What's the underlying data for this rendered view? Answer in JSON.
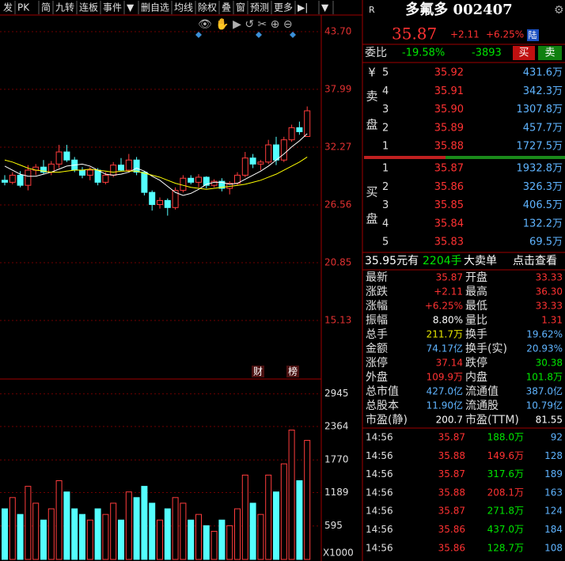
{
  "toolbar": [
    "发",
    "PK",
    "简",
    "九转",
    "连板",
    "事件",
    "▼",
    "删自选",
    "均线",
    "除权",
    "叠",
    "窗",
    "预测",
    "更多",
    "▶|",
    "▼"
  ],
  "chart_data": {
    "type": "candlestick",
    "candles": [
      {
        "open": 29.0,
        "high": 29.5,
        "low": 28.5,
        "close": 28.8
      },
      {
        "open": 28.8,
        "high": 29.8,
        "low": 28.6,
        "close": 29.5
      },
      {
        "open": 29.5,
        "high": 29.9,
        "low": 28.3,
        "close": 28.5
      },
      {
        "open": 28.5,
        "high": 30.5,
        "low": 28.0,
        "close": 30.0
      },
      {
        "open": 30.0,
        "high": 30.6,
        "low": 29.5,
        "close": 30.3
      },
      {
        "open": 30.3,
        "high": 31.0,
        "low": 29.6,
        "close": 29.8
      },
      {
        "open": 29.8,
        "high": 30.9,
        "low": 29.5,
        "close": 30.6
      },
      {
        "open": 30.6,
        "high": 32.5,
        "low": 30.2,
        "close": 31.8
      },
      {
        "open": 31.8,
        "high": 32.5,
        "low": 30.8,
        "close": 31.0
      },
      {
        "open": 31.0,
        "high": 31.3,
        "low": 29.8,
        "close": 30.0
      },
      {
        "open": 30.0,
        "high": 30.3,
        "low": 29.2,
        "close": 29.5
      },
      {
        "open": 29.5,
        "high": 30.3,
        "low": 29.0,
        "close": 30.0
      },
      {
        "open": 30.0,
        "high": 30.2,
        "low": 28.5,
        "close": 28.8
      },
      {
        "open": 28.8,
        "high": 29.8,
        "low": 28.6,
        "close": 29.5
      },
      {
        "open": 29.5,
        "high": 30.8,
        "low": 29.3,
        "close": 30.5
      },
      {
        "open": 30.5,
        "high": 31.2,
        "low": 29.9,
        "close": 30.0
      },
      {
        "open": 30.0,
        "high": 31.6,
        "low": 29.8,
        "close": 31.0
      },
      {
        "open": 31.0,
        "high": 31.3,
        "low": 29.5,
        "close": 29.8
      },
      {
        "open": 29.8,
        "high": 29.9,
        "low": 27.5,
        "close": 27.8
      },
      {
        "open": 27.8,
        "high": 28.0,
        "low": 26.0,
        "close": 26.6
      },
      {
        "open": 26.6,
        "high": 27.3,
        "low": 26.2,
        "close": 27.0
      },
      {
        "open": 27.0,
        "high": 27.2,
        "low": 25.5,
        "close": 26.3
      },
      {
        "open": 26.3,
        "high": 28.3,
        "low": 26.1,
        "close": 28.0
      },
      {
        "open": 28.0,
        "high": 29.5,
        "low": 27.8,
        "close": 29.2
      },
      {
        "open": 29.2,
        "high": 29.5,
        "low": 28.6,
        "close": 28.8
      },
      {
        "open": 28.8,
        "high": 29.6,
        "low": 28.3,
        "close": 29.3
      },
      {
        "open": 29.3,
        "high": 29.4,
        "low": 28.2,
        "close": 28.5
      },
      {
        "open": 28.5,
        "high": 29.1,
        "low": 28.3,
        "close": 28.9
      },
      {
        "open": 28.9,
        "high": 29.2,
        "low": 27.9,
        "close": 28.2
      },
      {
        "open": 28.2,
        "high": 28.9,
        "low": 27.6,
        "close": 28.7
      },
      {
        "open": 28.7,
        "high": 29.8,
        "low": 28.5,
        "close": 29.5
      },
      {
        "open": 29.5,
        "high": 31.8,
        "low": 29.3,
        "close": 31.2
      },
      {
        "open": 31.2,
        "high": 31.6,
        "low": 30.2,
        "close": 30.6
      },
      {
        "open": 30.6,
        "high": 31.0,
        "low": 30.0,
        "close": 30.8
      },
      {
        "open": 30.8,
        "high": 33.0,
        "low": 30.6,
        "close": 32.5
      },
      {
        "open": 32.5,
        "high": 33.3,
        "low": 30.5,
        "close": 31.0
      },
      {
        "open": 31.0,
        "high": 33.3,
        "low": 30.8,
        "close": 33.0
      },
      {
        "open": 33.0,
        "high": 34.5,
        "low": 32.8,
        "close": 34.2
      },
      {
        "open": 34.2,
        "high": 34.8,
        "low": 33.5,
        "close": 33.8
      },
      {
        "open": 33.33,
        "high": 36.3,
        "low": 33.33,
        "close": 35.87
      }
    ],
    "series": [
      {
        "color": "#ffffff",
        "values": [
          30.4,
          30.0,
          29.6,
          29.4,
          29.4,
          29.6,
          29.8,
          30.1,
          30.4,
          30.5,
          30.6,
          30.4,
          30.0,
          29.6,
          29.5,
          29.6,
          29.8,
          30.2,
          29.9,
          29.4,
          29.0,
          28.4,
          27.8,
          27.5,
          27.7,
          28.1,
          28.6,
          28.8,
          28.8,
          28.6,
          28.7,
          29.1,
          29.5,
          29.9,
          30.4,
          31.0,
          31.6,
          32.3,
          32.9,
          33.6
        ]
      },
      {
        "color": "#ffff00",
        "values": [
          31.0,
          30.8,
          30.5,
          30.2,
          30.0,
          29.9,
          29.8,
          29.8,
          29.9,
          30.0,
          30.0,
          30.1,
          30.0,
          29.9,
          29.8,
          29.9,
          29.9,
          29.9,
          29.7,
          29.5,
          29.3,
          29.0,
          28.7,
          28.5,
          28.3,
          28.2,
          28.1,
          28.2,
          28.3,
          28.4,
          28.5,
          28.6,
          28.8,
          29.0,
          29.3,
          29.6,
          30.0,
          30.4,
          30.8,
          31.3
        ]
      }
    ],
    "ylim": [
      9.42,
      44.48
    ],
    "yticks": [
      {
        "value": 43.7,
        "label": "43.70"
      },
      37.99,
      32.27,
      26.56,
      20.85,
      15.13
    ],
    "grid": true,
    "markers": [
      "财",
      "榜"
    ],
    "volume": {
      "values": [
        900,
        1100,
        800,
        1300,
        1000,
        700,
        900,
        1400,
        1200,
        900,
        800,
        700,
        900,
        800,
        1000,
        700,
        1200,
        1100,
        1300,
        1000,
        700,
        900,
        1100,
        1000,
        700,
        800,
        600,
        500,
        700,
        600,
        900,
        1500,
        1000,
        800,
        1500,
        1200,
        1700,
        2300,
        1400,
        2117
      ],
      "ylim": [
        0,
        3166
      ],
      "yticks": [
        2945,
        2364,
        1770,
        1189,
        595
      ],
      "unit_label": "X1000"
    }
  },
  "quote": {
    "market": "R",
    "title": "多氟多 002407",
    "price": "35.87",
    "change": "+2.11",
    "pct": "+6.25%",
    "tag": "陆"
  },
  "order_ratio": {
    "label": "委比",
    "ratio": "-19.58%",
    "diff": "-3893",
    "buy": "买",
    "sell": "卖"
  },
  "sell": {
    "labels": [
      "¥",
      "卖",
      "盘"
    ],
    "rows": [
      [
        "5",
        "35.92",
        "431.6万"
      ],
      [
        "4",
        "35.91",
        "342.3万"
      ],
      [
        "3",
        "35.90",
        "1307.8万"
      ],
      [
        "2",
        "35.89",
        "457.7万"
      ],
      [
        "1",
        "35.88",
        "1727.5万"
      ]
    ]
  },
  "buy": {
    "labels": [
      "买",
      "盘"
    ],
    "rows": [
      [
        "1",
        "35.87",
        "1932.8万"
      ],
      [
        "2",
        "35.86",
        "326.3万"
      ],
      [
        "3",
        "35.85",
        "406.5万"
      ],
      [
        "4",
        "35.84",
        "132.2万"
      ],
      [
        "5",
        "35.83",
        "69.5万"
      ]
    ]
  },
  "big_order": [
    "35.95元有",
    "2204手",
    "大卖单",
    "点击查看"
  ],
  "stats": [
    [
      "最新",
      "35.87",
      "开盘",
      "33.33"
    ],
    [
      "涨跌",
      "+2.11",
      "最高",
      "36.30"
    ],
    [
      "涨幅",
      "+6.25%",
      "最低",
      "33.33"
    ],
    [
      "振幅",
      "8.80%",
      "量比",
      "1.31"
    ],
    [
      "总手",
      "211.7万",
      "换手",
      "19.62%"
    ],
    [
      "金额",
      "74.17亿",
      "换手(实)",
      "20.93%"
    ],
    [
      "涨停",
      "37.14",
      "跌停",
      "30.38"
    ],
    [
      "外盘",
      "109.9万",
      "内盘",
      "101.8万"
    ],
    [
      "总市值",
      "427.0亿",
      "流通值",
      "387.0亿"
    ],
    [
      "总股本",
      "11.90亿",
      "流通股",
      "10.79亿"
    ],
    [
      "市盈(静)",
      "200.7",
      "市盈(TTM)",
      "81.55"
    ]
  ],
  "ticks": [
    {
      "time": "14:56",
      "price": "35.87",
      "volume": "188.0万",
      "count": "92",
      "vol_color": "#00e600"
    },
    {
      "time": "14:56",
      "price": "35.88",
      "volume": "149.6万",
      "count": "128",
      "vol_color": "#ff3232"
    },
    {
      "time": "14:56",
      "price": "35.87",
      "volume": "317.6万",
      "count": "189",
      "vol_color": "#00e600"
    },
    {
      "time": "14:56",
      "price": "35.88",
      "volume": "208.1万",
      "count": "163",
      "vol_color": "#ff3232"
    },
    {
      "time": "14:56",
      "price": "35.87",
      "volume": "271.8万",
      "count": "124",
      "vol_color": "#00e600"
    },
    {
      "time": "14:56",
      "price": "35.86",
      "volume": "437.0万",
      "count": "184",
      "vol_color": "#00e600"
    },
    {
      "time": "14:56",
      "price": "35.86",
      "volume": "128.7万",
      "count": "108",
      "vol_color": "#00e600"
    }
  ]
}
